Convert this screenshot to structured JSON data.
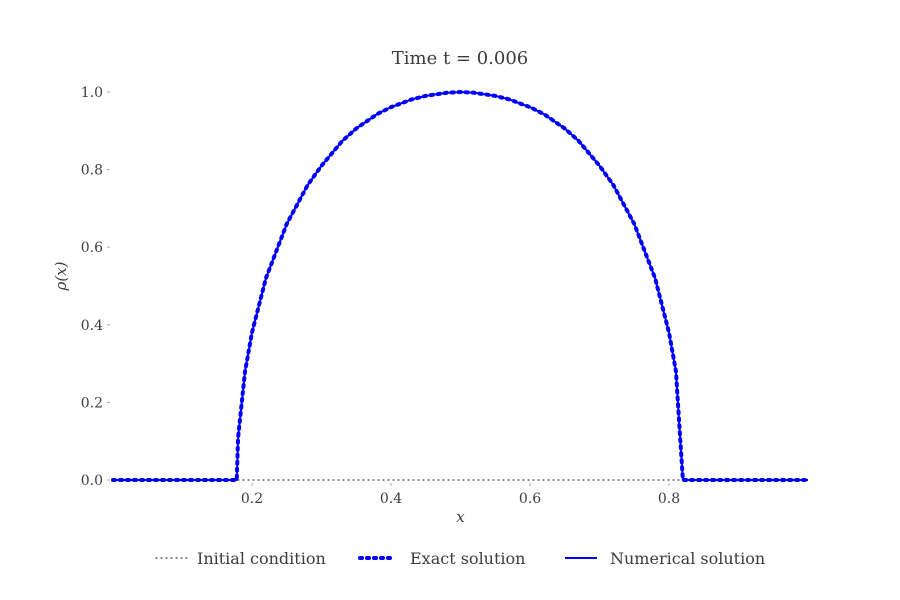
{
  "chart_data": {
    "type": "line",
    "title": "Time t = 0.006",
    "xlabel": "x",
    "ylabel": "ρ(x)",
    "xlim": [
      0.0,
      1.0
    ],
    "ylim": [
      0.0,
      1.0
    ],
    "x_ticks": [
      0.2,
      0.4,
      0.6,
      0.8
    ],
    "x_tick_labels": [
      "0.2",
      "0.4",
      "0.6",
      "0.8"
    ],
    "y_ticks": [
      0.0,
      0.2,
      0.4,
      0.6,
      0.8,
      1.0
    ],
    "y_tick_labels": [
      "0.0",
      "0.2",
      "0.4",
      "0.6",
      "0.8",
      "1.0"
    ],
    "grid": false,
    "legend_position": "bottom",
    "series": [
      {
        "name": "Initial condition",
        "style": "dotted",
        "color": "#3c3c3c",
        "x": [
          0.0,
          1.0
        ],
        "y": [
          0.0,
          0.0
        ]
      },
      {
        "name": "Exact solution",
        "style": "dotted-thick",
        "color": "#0000ff",
        "x": [
          0.0,
          0.17,
          0.178,
          0.18,
          0.19,
          0.2,
          0.22,
          0.25,
          0.28,
          0.3,
          0.33,
          0.35,
          0.38,
          0.4,
          0.43,
          0.45,
          0.48,
          0.5,
          0.52,
          0.55,
          0.57,
          0.6,
          0.62,
          0.65,
          0.67,
          0.7,
          0.72,
          0.75,
          0.78,
          0.8,
          0.81,
          0.816,
          0.82,
          0.822,
          0.83,
          1.0
        ],
        "y": [
          0.0,
          0.0,
          0.0,
          0.11,
          0.28,
          0.38,
          0.52,
          0.66,
          0.76,
          0.81,
          0.874,
          0.906,
          0.943,
          0.961,
          0.981,
          0.99,
          0.998,
          1.0,
          0.998,
          0.99,
          0.981,
          0.961,
          0.943,
          0.906,
          0.874,
          0.81,
          0.76,
          0.66,
          0.52,
          0.38,
          0.28,
          0.11,
          0.0,
          0.0,
          0.0,
          0.0
        ]
      },
      {
        "name": "Numerical solution",
        "style": "solid",
        "color": "#0000ff",
        "x": [
          0.0,
          0.17,
          0.178,
          0.18,
          0.19,
          0.2,
          0.22,
          0.25,
          0.28,
          0.3,
          0.33,
          0.35,
          0.38,
          0.4,
          0.43,
          0.45,
          0.48,
          0.5,
          0.52,
          0.55,
          0.57,
          0.6,
          0.62,
          0.65,
          0.67,
          0.7,
          0.72,
          0.75,
          0.78,
          0.8,
          0.81,
          0.816,
          0.82,
          0.822,
          0.83,
          1.0
        ],
        "y": [
          0.0,
          0.0,
          0.0,
          0.11,
          0.28,
          0.38,
          0.52,
          0.66,
          0.76,
          0.81,
          0.874,
          0.906,
          0.943,
          0.961,
          0.981,
          0.99,
          0.998,
          1.0,
          0.998,
          0.99,
          0.981,
          0.961,
          0.943,
          0.906,
          0.874,
          0.81,
          0.76,
          0.66,
          0.52,
          0.38,
          0.28,
          0.11,
          0.0,
          0.0,
          0.0,
          0.0
        ]
      }
    ]
  }
}
